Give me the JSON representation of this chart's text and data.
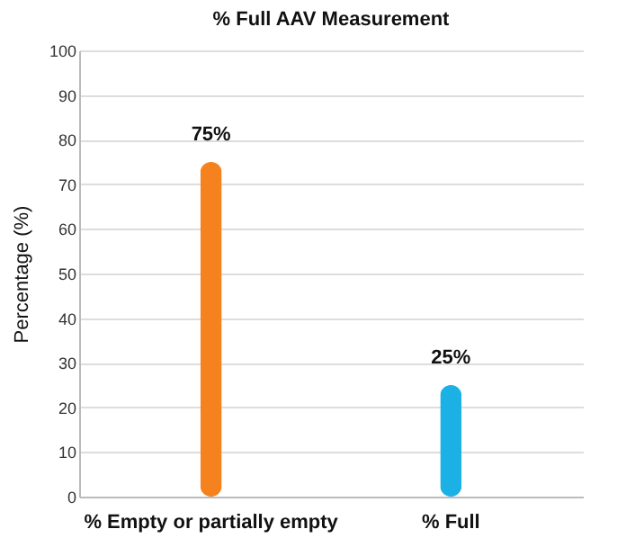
{
  "chart_data": {
    "type": "bar",
    "title": "% Full AAV Measurement",
    "ylabel": "Percentage (%)",
    "categories": [
      "% Empty or partially empty",
      "% Full"
    ],
    "values": [
      75,
      25
    ],
    "colors": [
      "#f5821f",
      "#1cb1e5"
    ],
    "ylim": [
      0,
      100
    ],
    "yticks": [
      0,
      10,
      20,
      30,
      40,
      50,
      60,
      70,
      80,
      90,
      100
    ],
    "grid": "y",
    "value_labels": [
      "75%",
      "25%"
    ]
  }
}
